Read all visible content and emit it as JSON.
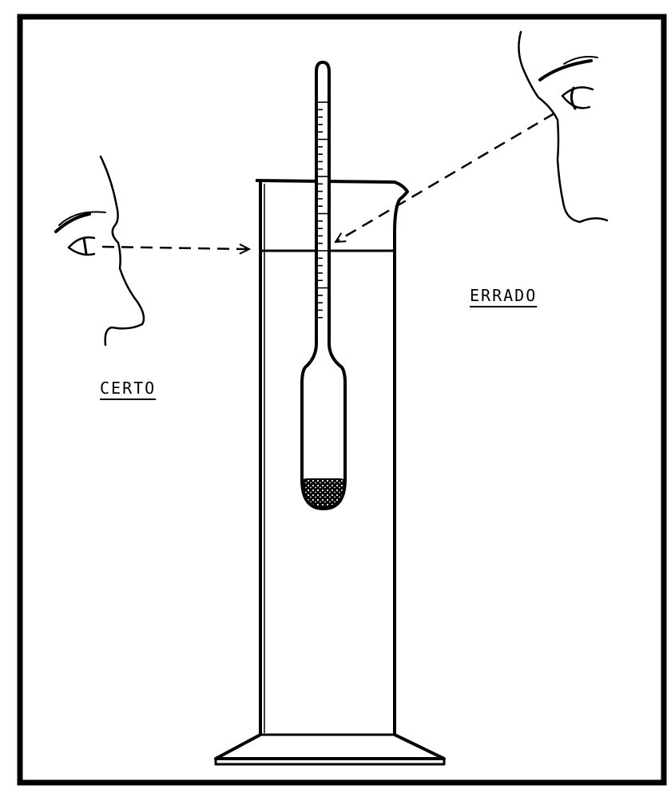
{
  "labels": {
    "correct": "CERTO",
    "wrong": "ERRADO"
  },
  "colors": {
    "ink": "#000000",
    "paper": "#ffffff"
  },
  "icons": [
    "eye-icon",
    "face-profile-icon",
    "hydrometer-icon",
    "graduated-cylinder-icon"
  ]
}
